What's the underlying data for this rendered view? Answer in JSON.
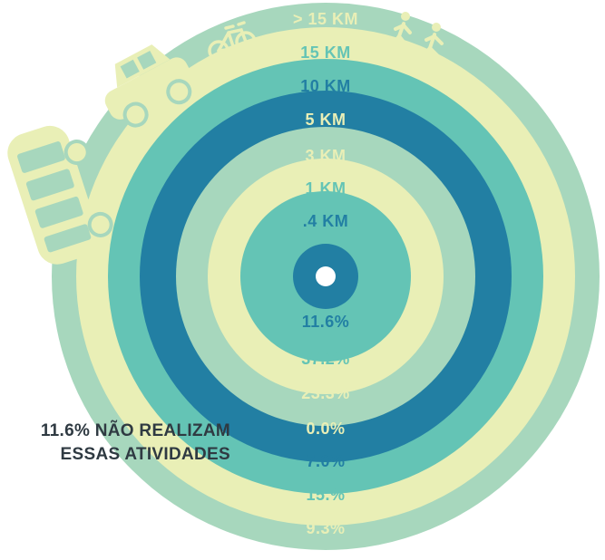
{
  "colors": {
    "mint": "#a7d7bd",
    "cream": "#e9efb6",
    "teal": "#64c4b5",
    "blue": "#227fa3",
    "white": "#ffffff",
    "dark_text": "#2f3a42"
  },
  "rings": [
    {
      "distance": "> 15 KM",
      "share": "9.3%",
      "color": "mint",
      "label_color": "cream"
    },
    {
      "distance": "15 KM",
      "share": "15.%",
      "color": "cream",
      "label_color": "teal"
    },
    {
      "distance": "10 KM",
      "share": "7.0%",
      "color": "teal",
      "label_color": "blue"
    },
    {
      "distance": "5 KM",
      "share": "0.0%",
      "color": "blue",
      "label_color": "cream"
    },
    {
      "distance": "3 KM",
      "share": "23.3%",
      "color": "mint",
      "label_color": "cream"
    },
    {
      "distance": "1 KM",
      "share": "37.2%",
      "color": "cream",
      "label_color": "teal"
    },
    {
      "distance": ".4 KM",
      "share": "11.6%",
      "color": "teal",
      "label_color": "blue"
    }
  ],
  "center_color": "blue",
  "icons": [
    "walking-people-icon",
    "bicycle-icon",
    "car-icon",
    "bus-icon"
  ],
  "note": {
    "line1": "11.6% NÃO REALIZAM",
    "line2": "ESSAS ATIVIDADES"
  }
}
